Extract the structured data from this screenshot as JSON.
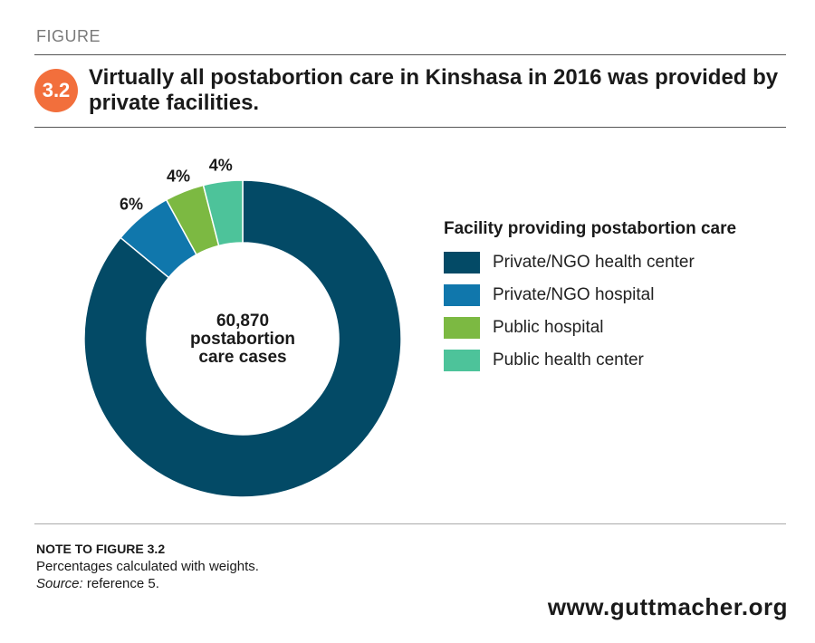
{
  "header": {
    "figure_label": "FIGURE",
    "figure_number": "3.2",
    "title": "Virtually all postabortion care in Kinshasa in 2016 was provided by private facilities."
  },
  "colors": {
    "badge": "#f26f3c",
    "private_ngo_health_center": "#034a66",
    "private_ngo_hospital": "#1077ac",
    "public_hospital": "#7cb942",
    "public_health_center": "#4dc39a"
  },
  "chart_data": {
    "type": "pie",
    "variant": "donut",
    "center_label": [
      "60,870",
      "postabortion",
      "care cases"
    ],
    "legend_title": "Facility providing postabortion care",
    "legend_placement": "right",
    "slices": [
      {
        "name": "Private/NGO health center",
        "value": 86,
        "data_label": ""
      },
      {
        "name": "Private/NGO hospital",
        "value": 6,
        "data_label": "6%"
      },
      {
        "name": "Public hospital",
        "value": 4,
        "data_label": "4%"
      },
      {
        "name": "Public health center",
        "value": 4,
        "data_label": "4%"
      }
    ]
  },
  "note": {
    "title": "NOTE TO FIGURE 3.2",
    "text": "Percentages calculated with weights.",
    "source_label": "Source:",
    "source_text": " reference 5."
  },
  "footer": {
    "website": "www.guttmacher.org"
  }
}
